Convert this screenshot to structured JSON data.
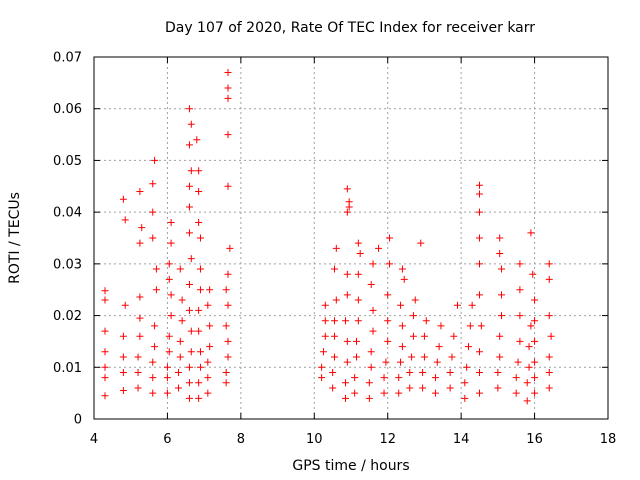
{
  "chart_data": {
    "type": "scatter",
    "title": "Day 107 of 2020, Rate Of TEC Index for receiver karr",
    "xlabel": "GPS time / hours",
    "ylabel": "ROTI / TECUs",
    "xlim": [
      4,
      18
    ],
    "ylim": [
      0,
      0.07
    ],
    "x_ticks": [
      4,
      6,
      8,
      10,
      12,
      14,
      16,
      18
    ],
    "x_tick_labels": [
      "4",
      "6",
      "8",
      "10",
      "12",
      "14",
      "16",
      "18"
    ],
    "y_ticks": [
      0,
      0.01,
      0.02,
      0.03,
      0.04,
      0.05,
      0.06,
      0.07
    ],
    "y_tick_labels": [
      "0",
      "0.01",
      "0.02",
      "0.03",
      "0.04",
      "0.05",
      "0.06",
      "0.07"
    ],
    "grid": true,
    "marker": "+",
    "color": "#ff0000",
    "series": [
      {
        "name": "ROTI",
        "points": [
          [
            4.3,
            0.0045
          ],
          [
            4.3,
            0.008
          ],
          [
            4.3,
            0.01
          ],
          [
            4.3,
            0.013
          ],
          [
            4.3,
            0.017
          ],
          [
            4.3,
            0.023
          ],
          [
            4.3,
            0.0248
          ],
          [
            4.8,
            0.0055
          ],
          [
            4.8,
            0.009
          ],
          [
            4.8,
            0.012
          ],
          [
            4.8,
            0.016
          ],
          [
            4.85,
            0.022
          ],
          [
            4.85,
            0.0385
          ],
          [
            4.8,
            0.0425
          ],
          [
            5.2,
            0.006
          ],
          [
            5.2,
            0.009
          ],
          [
            5.2,
            0.012
          ],
          [
            5.25,
            0.016
          ],
          [
            5.25,
            0.0195
          ],
          [
            5.25,
            0.0236
          ],
          [
            5.25,
            0.034
          ],
          [
            5.3,
            0.037
          ],
          [
            5.25,
            0.044
          ],
          [
            5.6,
            0.005
          ],
          [
            5.6,
            0.008
          ],
          [
            5.6,
            0.011
          ],
          [
            5.65,
            0.014
          ],
          [
            5.65,
            0.018
          ],
          [
            5.7,
            0.025
          ],
          [
            5.7,
            0.029
          ],
          [
            5.6,
            0.035
          ],
          [
            5.6,
            0.04
          ],
          [
            5.6,
            0.0455
          ],
          [
            5.65,
            0.05
          ],
          [
            6.0,
            0.005
          ],
          [
            6.0,
            0.008
          ],
          [
            6.0,
            0.01
          ],
          [
            6.05,
            0.013
          ],
          [
            6.05,
            0.016
          ],
          [
            6.1,
            0.02
          ],
          [
            6.1,
            0.024
          ],
          [
            6.05,
            0.027
          ],
          [
            6.05,
            0.03
          ],
          [
            6.1,
            0.034
          ],
          [
            6.1,
            0.038
          ],
          [
            6.3,
            0.006
          ],
          [
            6.3,
            0.009
          ],
          [
            6.35,
            0.012
          ],
          [
            6.35,
            0.015
          ],
          [
            6.4,
            0.019
          ],
          [
            6.4,
            0.023
          ],
          [
            6.35,
            0.029
          ],
          [
            6.6,
            0.004
          ],
          [
            6.6,
            0.007
          ],
          [
            6.6,
            0.01
          ],
          [
            6.65,
            0.013
          ],
          [
            6.65,
            0.017
          ],
          [
            6.6,
            0.021
          ],
          [
            6.6,
            0.026
          ],
          [
            6.65,
            0.031
          ],
          [
            6.6,
            0.036
          ],
          [
            6.6,
            0.041
          ],
          [
            6.6,
            0.045
          ],
          [
            6.65,
            0.048
          ],
          [
            6.6,
            0.053
          ],
          [
            6.65,
            0.057
          ],
          [
            6.6,
            0.06
          ],
          [
            6.85,
            0.004
          ],
          [
            6.85,
            0.007
          ],
          [
            6.9,
            0.01
          ],
          [
            6.9,
            0.013
          ],
          [
            6.85,
            0.017
          ],
          [
            6.85,
            0.021
          ],
          [
            6.9,
            0.025
          ],
          [
            6.9,
            0.029
          ],
          [
            6.9,
            0.035
          ],
          [
            6.85,
            0.038
          ],
          [
            6.85,
            0.044
          ],
          [
            6.85,
            0.048
          ],
          [
            6.8,
            0.054
          ],
          [
            7.1,
            0.005
          ],
          [
            7.1,
            0.008
          ],
          [
            7.1,
            0.011
          ],
          [
            7.15,
            0.014
          ],
          [
            7.15,
            0.018
          ],
          [
            7.1,
            0.022
          ],
          [
            7.15,
            0.025
          ],
          [
            7.6,
            0.007
          ],
          [
            7.6,
            0.009
          ],
          [
            7.65,
            0.012
          ],
          [
            7.65,
            0.015
          ],
          [
            7.6,
            0.018
          ],
          [
            7.65,
            0.022
          ],
          [
            7.6,
            0.025
          ],
          [
            7.65,
            0.028
          ],
          [
            7.7,
            0.033
          ],
          [
            7.65,
            0.045
          ],
          [
            7.65,
            0.055
          ],
          [
            7.65,
            0.062
          ],
          [
            7.65,
            0.064
          ],
          [
            7.65,
            0.067
          ],
          [
            10.2,
            0.008
          ],
          [
            10.2,
            0.01
          ],
          [
            10.25,
            0.013
          ],
          [
            10.3,
            0.016
          ],
          [
            10.3,
            0.019
          ],
          [
            10.3,
            0.022
          ],
          [
            10.5,
            0.006
          ],
          [
            10.5,
            0.009
          ],
          [
            10.55,
            0.012
          ],
          [
            10.55,
            0.016
          ],
          [
            10.55,
            0.019
          ],
          [
            10.6,
            0.023
          ],
          [
            10.55,
            0.029
          ],
          [
            10.6,
            0.033
          ],
          [
            10.85,
            0.004
          ],
          [
            10.85,
            0.007
          ],
          [
            10.9,
            0.011
          ],
          [
            10.9,
            0.015
          ],
          [
            10.85,
            0.019
          ],
          [
            10.9,
            0.024
          ],
          [
            10.9,
            0.028
          ],
          [
            10.9,
            0.04
          ],
          [
            10.95,
            0.041
          ],
          [
            10.95,
            0.042
          ],
          [
            10.9,
            0.0445
          ],
          [
            11.1,
            0.005
          ],
          [
            11.1,
            0.008
          ],
          [
            11.15,
            0.012
          ],
          [
            11.15,
            0.015
          ],
          [
            11.2,
            0.019
          ],
          [
            11.2,
            0.023
          ],
          [
            11.2,
            0.028
          ],
          [
            11.2,
            0.034
          ],
          [
            11.25,
            0.032
          ],
          [
            11.5,
            0.004
          ],
          [
            11.5,
            0.007
          ],
          [
            11.55,
            0.01
          ],
          [
            11.55,
            0.013
          ],
          [
            11.6,
            0.017
          ],
          [
            11.6,
            0.021
          ],
          [
            11.55,
            0.026
          ],
          [
            11.6,
            0.03
          ],
          [
            11.75,
            0.033
          ],
          [
            11.9,
            0.005
          ],
          [
            11.9,
            0.008
          ],
          [
            11.95,
            0.011
          ],
          [
            12.0,
            0.015
          ],
          [
            12.0,
            0.019
          ],
          [
            12.0,
            0.024
          ],
          [
            12.05,
            0.035
          ],
          [
            12.05,
            0.03
          ],
          [
            12.3,
            0.005
          ],
          [
            12.3,
            0.008
          ],
          [
            12.35,
            0.011
          ],
          [
            12.4,
            0.014
          ],
          [
            12.4,
            0.018
          ],
          [
            12.35,
            0.022
          ],
          [
            12.45,
            0.027
          ],
          [
            12.4,
            0.029
          ],
          [
            12.6,
            0.006
          ],
          [
            12.6,
            0.009
          ],
          [
            12.65,
            0.012
          ],
          [
            12.7,
            0.016
          ],
          [
            12.7,
            0.02
          ],
          [
            12.75,
            0.023
          ],
          [
            12.9,
            0.034
          ],
          [
            12.95,
            0.006
          ],
          [
            12.95,
            0.009
          ],
          [
            13.0,
            0.012
          ],
          [
            13.0,
            0.016
          ],
          [
            13.05,
            0.019
          ],
          [
            13.3,
            0.005
          ],
          [
            13.3,
            0.008
          ],
          [
            13.35,
            0.011
          ],
          [
            13.4,
            0.014
          ],
          [
            13.45,
            0.018
          ],
          [
            13.7,
            0.006
          ],
          [
            13.7,
            0.009
          ],
          [
            13.75,
            0.012
          ],
          [
            13.8,
            0.016
          ],
          [
            13.9,
            0.022
          ],
          [
            14.1,
            0.004
          ],
          [
            14.1,
            0.007
          ],
          [
            14.15,
            0.01
          ],
          [
            14.2,
            0.014
          ],
          [
            14.25,
            0.018
          ],
          [
            14.3,
            0.022
          ],
          [
            14.5,
            0.005
          ],
          [
            14.5,
            0.009
          ],
          [
            14.5,
            0.013
          ],
          [
            14.55,
            0.018
          ],
          [
            14.5,
            0.024
          ],
          [
            14.5,
            0.03
          ],
          [
            14.5,
            0.035
          ],
          [
            14.5,
            0.04
          ],
          [
            14.5,
            0.0435
          ],
          [
            14.5,
            0.0452
          ],
          [
            15.0,
            0.006
          ],
          [
            15.0,
            0.009
          ],
          [
            15.05,
            0.012
          ],
          [
            15.05,
            0.016
          ],
          [
            15.1,
            0.02
          ],
          [
            15.1,
            0.024
          ],
          [
            15.1,
            0.029
          ],
          [
            15.05,
            0.032
          ],
          [
            15.05,
            0.035
          ],
          [
            15.5,
            0.005
          ],
          [
            15.5,
            0.008
          ],
          [
            15.55,
            0.011
          ],
          [
            15.6,
            0.015
          ],
          [
            15.6,
            0.02
          ],
          [
            15.6,
            0.025
          ],
          [
            15.6,
            0.03
          ],
          [
            15.8,
            0.0035
          ],
          [
            15.8,
            0.007
          ],
          [
            15.85,
            0.01
          ],
          [
            15.85,
            0.014
          ],
          [
            15.9,
            0.018
          ],
          [
            16.0,
            0.005
          ],
          [
            16.0,
            0.008
          ],
          [
            16.0,
            0.011
          ],
          [
            16.0,
            0.015
          ],
          [
            16.0,
            0.019
          ],
          [
            16.0,
            0.023
          ],
          [
            15.95,
            0.028
          ],
          [
            15.9,
            0.036
          ],
          [
            16.4,
            0.006
          ],
          [
            16.4,
            0.009
          ],
          [
            16.4,
            0.012
          ],
          [
            16.45,
            0.016
          ],
          [
            16.4,
            0.02
          ],
          [
            16.4,
            0.027
          ],
          [
            16.4,
            0.03
          ]
        ]
      }
    ]
  }
}
